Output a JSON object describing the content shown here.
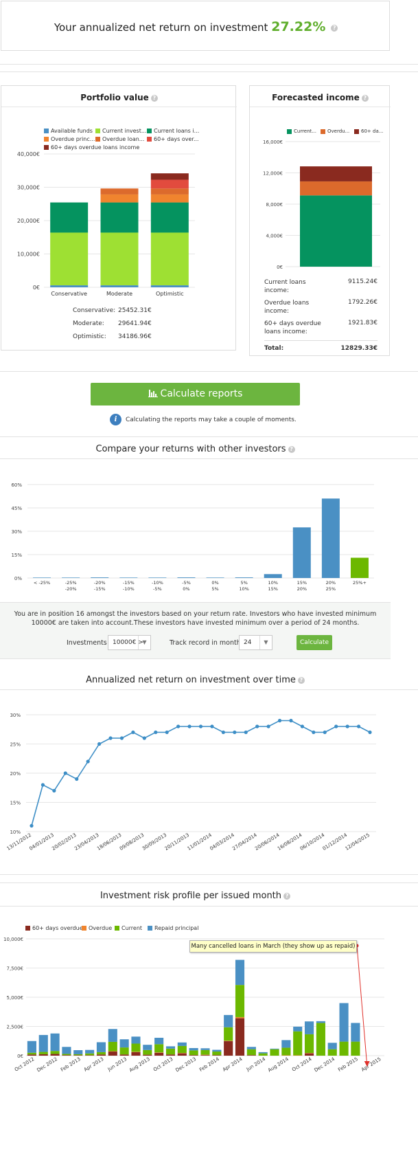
{
  "header": {
    "label": "Your annualized net return on investment",
    "value": "27.22%",
    "help": "?"
  },
  "portfolio": {
    "title": "Portfolio value",
    "help": "?",
    "legend": [
      {
        "label": "Available funds",
        "color": "#4a90c4"
      },
      {
        "label": "Current invest...",
        "color": "#9ee033"
      },
      {
        "label": "Current loans i...",
        "color": "#05935f"
      },
      {
        "label": "Overdue princ...",
        "color": "#f0842e"
      },
      {
        "label": "Overdue loan...",
        "color": "#dc6a2c"
      },
      {
        "label": "60+ days over...",
        "color": "#e24b3e"
      },
      {
        "label": "60+ days overdue loans income",
        "color": "#8a2a1f"
      }
    ],
    "summary": [
      {
        "label": "Conservative:",
        "value": "25452.31€"
      },
      {
        "label": "Moderate:",
        "value": "29641.94€"
      },
      {
        "label": "Optimistic:",
        "value": "34186.96€"
      }
    ]
  },
  "forecast": {
    "title": "Forecasted income",
    "help": "?",
    "legend": [
      {
        "label": "Current...",
        "color": "#05935f"
      },
      {
        "label": "Overdu...",
        "color": "#dc6a2c"
      },
      {
        "label": "60+ da...",
        "color": "#8a2a1f"
      }
    ],
    "rows": [
      {
        "label": "Current loans income:",
        "value": "9115.24€"
      },
      {
        "label": "Overdue loans income:",
        "value": "1792.26€"
      },
      {
        "label": "60+ days overdue loans income:",
        "value": "1921.83€"
      }
    ],
    "total_label": "Total:",
    "total_value": "12829.33€"
  },
  "calculate": {
    "button_label": "Calculate reports",
    "note": "Calculating the reports may take a couple of moments."
  },
  "compare": {
    "title": "Compare your returns with other investors",
    "help": "?",
    "text": "You are in position 16 amongst the investors based on your return rate. Investors who have invested minimum 10000€ are taken into account.These investors have invested minimum over a period of 24 months.",
    "investments_label": "Investments :",
    "investments_value": "10000€ >",
    "track_label": "Track record in months:",
    "track_value": "24",
    "calc_button": "Calculate"
  },
  "annualized": {
    "title": "Annualized net return on investment over time",
    "help": "?"
  },
  "risk": {
    "title": "Investment risk profile per issued month",
    "help": "?",
    "legend": [
      {
        "label": "60+ days overdue",
        "color": "#8a2a1f"
      },
      {
        "label": "Overdue",
        "color": "#f0842e"
      },
      {
        "label": "Current",
        "color": "#6cb800"
      },
      {
        "label": "Repaid principal",
        "color": "#4a90c4"
      }
    ],
    "tooltip": "Many cancelled loans in March (they show up as repaid)"
  },
  "chart_data": [
    {
      "type": "bar",
      "stacked": true,
      "categories": [
        "Conservative",
        "Moderate",
        "Optimistic"
      ],
      "series": [
        {
          "name": "Available funds",
          "color": "#4a90c4",
          "values": [
            600,
            600,
            600
          ]
        },
        {
          "name": "Current invest...",
          "color": "#9ee033",
          "values": [
            15800,
            15800,
            15800
          ]
        },
        {
          "name": "Current loans i...",
          "color": "#05935f",
          "values": [
            9050,
            9050,
            9050
          ]
        },
        {
          "name": "Overdue princ...",
          "color": "#f0842e",
          "values": [
            0,
            2400,
            2400
          ]
        },
        {
          "name": "Overdue loan...",
          "color": "#dc6a2c",
          "values": [
            0,
            1790,
            1790
          ]
        },
        {
          "name": "60+ days over...",
          "color": "#e24b3e",
          "values": [
            0,
            0,
            2620
          ]
        },
        {
          "name": "60+ days overdue loans income",
          "color": "#8a2a1f",
          "values": [
            0,
            0,
            1925
          ]
        }
      ],
      "yticks": [
        "0€",
        "10,000€",
        "20,000€",
        "30,000€",
        "40,000€"
      ],
      "ylim": [
        0,
        40000
      ]
    },
    {
      "type": "bar",
      "stacked": true,
      "categories": [
        ""
      ],
      "series": [
        {
          "name": "Current...",
          "color": "#05935f",
          "values": [
            9115.24
          ]
        },
        {
          "name": "Overdu...",
          "color": "#dc6a2c",
          "values": [
            1792.26
          ]
        },
        {
          "name": "60+ da...",
          "color": "#8a2a1f",
          "values": [
            1921.83
          ]
        }
      ],
      "yticks": [
        "0€",
        "4,000€",
        "8,000€",
        "12,000€",
        "16,000€"
      ],
      "ylim": [
        0,
        16000
      ]
    },
    {
      "type": "bar",
      "categories": [
        [
          "< -25%",
          ""
        ],
        [
          "-25%",
          "-20%"
        ],
        [
          "-20%",
          "-15%"
        ],
        [
          "-15%",
          "-10%"
        ],
        [
          "-10%",
          "-5%"
        ],
        [
          "-5%",
          "0%"
        ],
        [
          "0%",
          "5%"
        ],
        [
          "5%",
          "10%"
        ],
        [
          "10%",
          "15%"
        ],
        [
          "15%",
          "20%"
        ],
        [
          "20%",
          "25%"
        ],
        [
          "25%+",
          ""
        ]
      ],
      "values": [
        0.3,
        0.3,
        0.4,
        0.3,
        0.3,
        0.4,
        0.3,
        0.4,
        2.5,
        32.5,
        51,
        13
      ],
      "highlight_index": 11,
      "yticks": [
        "0%",
        "15%",
        "30%",
        "45%",
        "60%"
      ],
      "ylim": [
        0,
        60
      ]
    },
    {
      "type": "line",
      "x": [
        "13/11/2012",
        "",
        "04/01/2013",
        "",
        "20/02/2013",
        "",
        "23/04/2013",
        "",
        "18/06/2013",
        "",
        "09/08/2013",
        "",
        "30/09/2013",
        "",
        "20/11/2013",
        "",
        "11/01/2014",
        "",
        "04/03/2014",
        "",
        "27/04/2014",
        "",
        "20/06/2014",
        "",
        "16/08/2014",
        "",
        "06/10/2014",
        "",
        "01/12/2014",
        "",
        "12/04/2015"
      ],
      "values": [
        11,
        18,
        17,
        20,
        19,
        22,
        25,
        26,
        26,
        27,
        26,
        27,
        27,
        28,
        28,
        28,
        28,
        27,
        27,
        27,
        28,
        28,
        29,
        29,
        28,
        27,
        27,
        28,
        28,
        28,
        27
      ],
      "yticks": [
        "10%",
        "15%",
        "20%",
        "25%",
        "30%"
      ],
      "ylim": [
        10,
        30
      ]
    },
    {
      "type": "bar",
      "stacked": true,
      "xticks": [
        "Oct 2012",
        "Dec 2012",
        "Feb 2013",
        "Apr 2013",
        "Jun 2013",
        "Aug 2013",
        "Oct 2013",
        "Dec 2013",
        "Feb 2014",
        "Apr 2014",
        "Jun 2014",
        "Aug 2014",
        "Oct 2014",
        "Dec 2014",
        "Feb 2015",
        "Apr 2015"
      ],
      "series": [
        {
          "name": "60+ days overdue",
          "color": "#8a2a1f",
          "values": [
            100,
            120,
            150,
            50,
            40,
            40,
            100,
            350,
            100,
            300,
            80,
            250,
            100,
            200,
            50,
            50,
            50,
            1250,
            3200,
            50,
            0,
            0,
            0,
            0,
            200,
            0,
            0,
            0,
            0,
            0,
            0
          ]
        },
        {
          "name": "Overdue",
          "color": "#f0842e",
          "values": [
            0,
            0,
            0,
            0,
            0,
            0,
            0,
            30,
            0,
            30,
            0,
            30,
            0,
            30,
            0,
            30,
            0,
            30,
            100,
            0,
            0,
            0,
            30,
            30,
            30,
            0,
            0,
            0,
            0,
            0,
            0
          ]
        },
        {
          "name": "Current",
          "color": "#6cb800",
          "values": [
            150,
            200,
            250,
            100,
            80,
            150,
            200,
            800,
            600,
            700,
            400,
            700,
            500,
            600,
            400,
            400,
            300,
            1150,
            2750,
            500,
            200,
            550,
            650,
            2050,
            1600,
            2800,
            550,
            1200,
            1200,
            0,
            0
          ]
        },
        {
          "name": "Repaid principal",
          "color": "#4a90c4",
          "values": [
            1000,
            1450,
            1500,
            600,
            350,
            300,
            850,
            1100,
            700,
            600,
            450,
            550,
            200,
            300,
            200,
            150,
            150,
            1050,
            2150,
            200,
            100,
            50,
            650,
            400,
            1100,
            150,
            550,
            3300,
            1600,
            0,
            0
          ]
        }
      ],
      "yticks": [
        "0€",
        "2,500€",
        "5,000€",
        "7,500€",
        "10,000€"
      ],
      "ylim": [
        0,
        10000
      ]
    }
  ]
}
